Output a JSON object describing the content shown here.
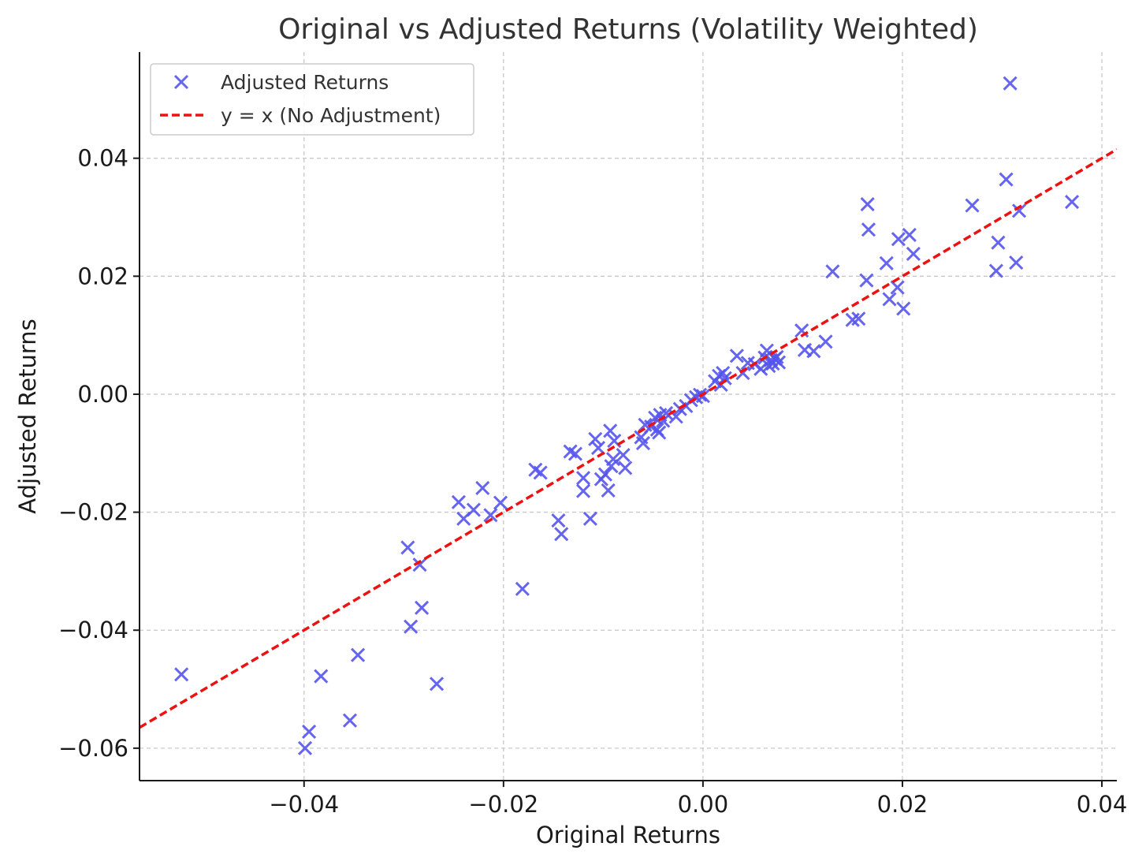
{
  "chart_data": {
    "type": "scatter",
    "title": "Original vs Adjusted Returns (Volatility Weighted)",
    "xlabel": "Original Returns",
    "ylabel": "Adjusted Returns",
    "xlim": [
      -0.0565,
      0.0415
    ],
    "ylim": [
      -0.0655,
      0.058
    ],
    "xticks": [
      -0.04,
      -0.02,
      0.0,
      0.02,
      0.04
    ],
    "xtick_labels": [
      "−0.04",
      "−0.02",
      "0.00",
      "0.02",
      "0.04"
    ],
    "yticks": [
      -0.06,
      -0.04,
      -0.02,
      0.0,
      0.02,
      0.04
    ],
    "ytick_labels": [
      "−0.06",
      "−0.04",
      "−0.02",
      "0.00",
      "0.02",
      "0.04"
    ],
    "grid": true,
    "legend_position": "top-left",
    "series": [
      {
        "name": "Adjusted Returns",
        "marker": "x",
        "color": "#5555ee",
        "points": [
          [
            -0.0523,
            -0.0475
          ],
          [
            -0.0399,
            -0.06
          ],
          [
            -0.0395,
            -0.0572
          ],
          [
            -0.0383,
            -0.0478
          ],
          [
            -0.0354,
            -0.0553
          ],
          [
            -0.0346,
            -0.0442
          ],
          [
            -0.0296,
            -0.026
          ],
          [
            -0.0293,
            -0.0394
          ],
          [
            -0.0284,
            -0.0289
          ],
          [
            -0.0282,
            -0.0362
          ],
          [
            -0.0267,
            -0.0491
          ],
          [
            -0.0245,
            -0.0183
          ],
          [
            -0.024,
            -0.0211
          ],
          [
            -0.023,
            -0.0196
          ],
          [
            -0.0221,
            -0.0159
          ],
          [
            -0.0213,
            -0.0205
          ],
          [
            -0.0203,
            -0.0184
          ],
          [
            -0.0181,
            -0.033
          ],
          [
            -0.0168,
            -0.0128
          ],
          [
            -0.0163,
            -0.0133
          ],
          [
            -0.0145,
            -0.0214
          ],
          [
            -0.0142,
            -0.0237
          ],
          [
            -0.0133,
            -0.0097
          ],
          [
            -0.0128,
            -0.0101
          ],
          [
            -0.012,
            -0.0142
          ],
          [
            -0.012,
            -0.0164
          ],
          [
            -0.0113,
            -0.0211
          ],
          [
            -0.0108,
            -0.0076
          ],
          [
            -0.0105,
            -0.0091
          ],
          [
            -0.0102,
            -0.0144
          ],
          [
            -0.0098,
            -0.0136
          ],
          [
            -0.0095,
            -0.0163
          ],
          [
            -0.0093,
            -0.0062
          ],
          [
            -0.0092,
            -0.0122
          ],
          [
            -0.009,
            -0.011
          ],
          [
            -0.0089,
            -0.0079
          ],
          [
            -0.008,
            -0.0103
          ],
          [
            -0.0078,
            -0.0125
          ],
          [
            -0.0062,
            -0.0073
          ],
          [
            -0.006,
            -0.0083
          ],
          [
            -0.0058,
            -0.0052
          ],
          [
            -0.0052,
            -0.0055
          ],
          [
            -0.0048,
            -0.004
          ],
          [
            -0.0046,
            -0.006
          ],
          [
            -0.0044,
            -0.0065
          ],
          [
            -0.0043,
            -0.0035
          ],
          [
            -0.004,
            -0.0045
          ],
          [
            -0.0037,
            -0.0032
          ],
          [
            -0.0027,
            -0.0038
          ],
          [
            -0.0023,
            -0.0025
          ],
          [
            -0.0017,
            -0.002
          ],
          [
            -0.0012,
            -0.001
          ],
          [
            -0.0007,
            -0.0005
          ],
          [
            -0.0003,
            -0.0001
          ],
          [
            0.0,
            -0.0003
          ],
          [
            0.0012,
            0.0022
          ],
          [
            0.0016,
            0.0031
          ],
          [
            0.0018,
            0.0016
          ],
          [
            0.002,
            0.0036
          ],
          [
            0.0022,
            0.0027
          ],
          [
            0.0034,
            0.0065
          ],
          [
            0.004,
            0.0036
          ],
          [
            0.0045,
            0.0053
          ],
          [
            0.0052,
            0.0051
          ],
          [
            0.0058,
            0.0043
          ],
          [
            0.0062,
            0.0062
          ],
          [
            0.0064,
            0.0074
          ],
          [
            0.0066,
            0.0048
          ],
          [
            0.0068,
            0.0058
          ],
          [
            0.007,
            0.0052
          ],
          [
            0.0072,
            0.006
          ],
          [
            0.0074,
            0.0063
          ],
          [
            0.0076,
            0.0054
          ],
          [
            0.0099,
            0.0108
          ],
          [
            0.0102,
            0.0075
          ],
          [
            0.0111,
            0.0073
          ],
          [
            0.0123,
            0.0089
          ],
          [
            0.013,
            0.0208
          ],
          [
            0.015,
            0.0126
          ],
          [
            0.0156,
            0.0128
          ],
          [
            0.0164,
            0.0193
          ],
          [
            0.0165,
            0.0322
          ],
          [
            0.0166,
            0.0279
          ],
          [
            0.0184,
            0.0222
          ],
          [
            0.0187,
            0.0161
          ],
          [
            0.0195,
            0.0181
          ],
          [
            0.0196,
            0.0263
          ],
          [
            0.0201,
            0.0145
          ],
          [
            0.0207,
            0.027
          ],
          [
            0.0211,
            0.0238
          ],
          [
            0.027,
            0.032
          ],
          [
            0.0294,
            0.0209
          ],
          [
            0.0296,
            0.0257
          ],
          [
            0.0304,
            0.0364
          ],
          [
            0.0308,
            0.0527
          ],
          [
            0.0314,
            0.0223
          ],
          [
            0.0317,
            0.0311
          ],
          [
            0.037,
            0.0326
          ]
        ]
      },
      {
        "name": "y = x (No Adjustment)",
        "type": "line",
        "style": "dashed",
        "color": "#ee1111",
        "points": [
          [
            -0.0565,
            -0.0565
          ],
          [
            0.0415,
            0.0415
          ]
        ]
      }
    ]
  }
}
